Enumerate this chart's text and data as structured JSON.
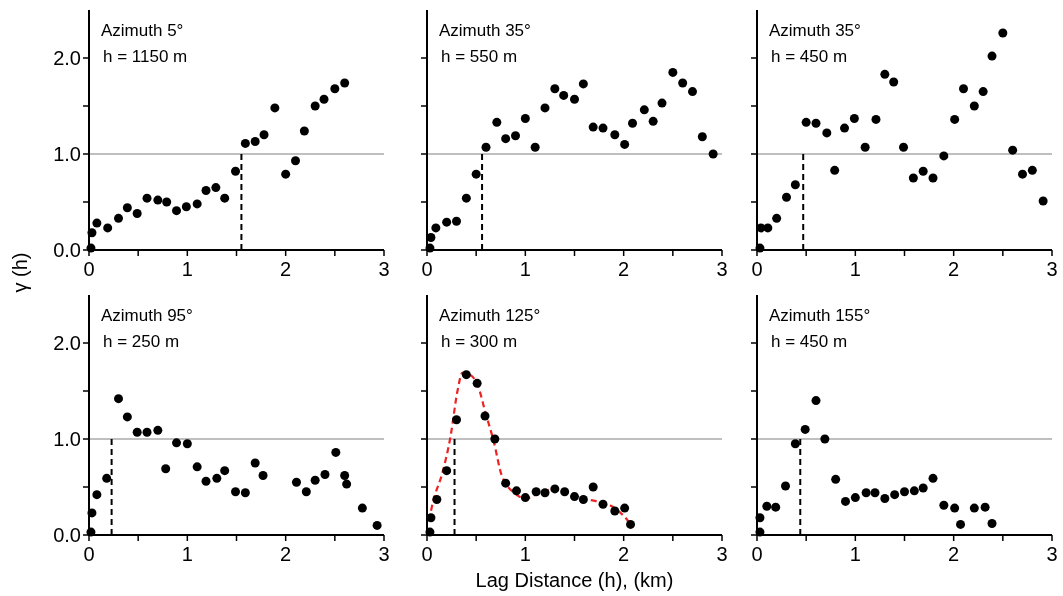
{
  "chart_data": [
    {
      "type": "scatter",
      "title": "Azimuth 5°",
      "subtitle": "h = 1150 m",
      "ylabel": "γ (h)",
      "xlim": [
        0,
        3
      ],
      "ylim": [
        0,
        2.5
      ],
      "xticks": [
        0,
        {
          "value": 0.5,
          "label": null
        },
        1,
        {
          "value": 1.5,
          "label": null
        },
        2,
        {
          "value": 2.5,
          "label": null
        },
        3
      ],
      "yticks": [
        {
          "value": 0,
          "label": "0.0"
        },
        {
          "value": 0.5,
          "label": null
        },
        {
          "value": 1,
          "label": "1.0"
        },
        {
          "value": 1.5,
          "label": null
        },
        {
          "value": 2,
          "label": "2.0"
        }
      ],
      "marker": "circle",
      "grid": false,
      "ref_lines": [
        {
          "axis": "y",
          "value": 1,
          "color": "#808080"
        },
        {
          "axis": "x",
          "value": 1.55,
          "color": "#000000",
          "line_style": "dashed"
        }
      ],
      "series": [
        {
          "color": "#000000",
          "x": [
            0.02,
            0.03,
            0.08,
            0.19,
            0.3,
            0.39,
            0.49,
            0.59,
            0.7,
            0.79,
            0.89,
            0.99,
            1.1,
            1.19,
            1.29,
            1.38,
            1.49,
            1.59,
            1.69,
            1.78,
            1.89,
            2.0,
            2.1,
            2.19,
            2.3,
            2.39,
            2.5,
            2.6
          ],
          "values": [
            0.02,
            0.18,
            0.28,
            0.23,
            0.33,
            0.44,
            0.38,
            0.54,
            0.52,
            0.5,
            0.41,
            0.45,
            0.48,
            0.62,
            0.65,
            0.54,
            0.82,
            1.11,
            1.13,
            1.2,
            1.48,
            0.79,
            0.93,
            1.24,
            1.5,
            1.57,
            1.68,
            1.74
          ]
        }
      ]
    },
    {
      "type": "scatter",
      "title": "Azimuth 35°",
      "subtitle": "h = 550 m",
      "xlim": [
        0,
        3
      ],
      "ylim": [
        0,
        2.5
      ],
      "xticks": [
        0,
        {
          "value": 0.5,
          "label": null
        },
        1,
        {
          "value": 1.5,
          "label": null
        },
        2,
        {
          "value": 2.5,
          "label": null
        },
        3
      ],
      "yticks": [
        {
          "value": 0,
          "label": null
        },
        {
          "value": 0.5,
          "label": null
        },
        {
          "value": 1,
          "label": null
        },
        {
          "value": 1.5,
          "label": null
        },
        {
          "value": 2,
          "label": null
        }
      ],
      "tick_labels": "x",
      "marker": "circle",
      "grid": false,
      "ref_lines": [
        {
          "axis": "y",
          "value": 1,
          "color": "#808080"
        },
        {
          "axis": "x",
          "value": 0.56,
          "color": "#000000",
          "line_style": "dashed"
        }
      ],
      "series": [
        {
          "color": "#000000",
          "x": [
            0.03,
            0.04,
            0.09,
            0.2,
            0.3,
            0.4,
            0.5,
            0.6,
            0.71,
            0.8,
            0.9,
            1.0,
            1.1,
            1.2,
            1.3,
            1.39,
            1.5,
            1.59,
            1.69,
            1.79,
            1.91,
            2.01,
            2.09,
            2.21,
            2.3,
            2.39,
            2.5,
            2.6,
            2.7,
            2.8,
            2.91
          ],
          "values": [
            0.02,
            0.13,
            0.23,
            0.29,
            0.3,
            0.54,
            0.79,
            1.07,
            1.33,
            1.16,
            1.19,
            1.37,
            1.07,
            1.48,
            1.68,
            1.61,
            1.57,
            1.73,
            1.28,
            1.27,
            1.2,
            1.1,
            1.32,
            1.46,
            1.34,
            1.53,
            1.85,
            1.74,
            1.65,
            1.18,
            1.0
          ]
        }
      ]
    },
    {
      "type": "scatter",
      "title": "Azimuth 35°",
      "subtitle": "h = 450 m",
      "xlim": [
        0,
        3
      ],
      "ylim": [
        0,
        2.5
      ],
      "xticks": [
        0,
        {
          "value": 0.5,
          "label": null
        },
        1,
        {
          "value": 1.5,
          "label": null
        },
        2,
        {
          "value": 2.5,
          "label": null
        },
        3
      ],
      "yticks": [
        {
          "value": 0,
          "label": null
        },
        {
          "value": 0.5,
          "label": null
        },
        {
          "value": 1,
          "label": null
        },
        {
          "value": 1.5,
          "label": null
        },
        {
          "value": 2,
          "label": null
        }
      ],
      "tick_labels": "x",
      "marker": "circle",
      "grid": false,
      "ref_lines": [
        {
          "axis": "y",
          "value": 1,
          "color": "#808080"
        },
        {
          "axis": "x",
          "value": 0.47,
          "color": "#000000",
          "line_style": "dashed"
        }
      ],
      "series": [
        {
          "color": "#000000",
          "x": [
            0.03,
            0.04,
            0.11,
            0.2,
            0.3,
            0.39,
            0.5,
            0.6,
            0.71,
            0.79,
            0.89,
            0.99,
            1.1,
            1.21,
            1.3,
            1.39,
            1.49,
            1.59,
            1.69,
            1.79,
            1.9,
            2.01,
            2.1,
            2.21,
            2.3,
            2.39,
            2.5,
            2.6,
            2.7,
            2.8,
            2.91
          ],
          "values": [
            0.02,
            0.23,
            0.23,
            0.33,
            0.55,
            0.68,
            1.33,
            1.32,
            1.22,
            0.83,
            1.27,
            1.37,
            1.07,
            1.36,
            1.83,
            1.75,
            1.07,
            0.75,
            0.82,
            0.75,
            0.98,
            1.36,
            1.68,
            1.5,
            1.65,
            2.02,
            2.26,
            1.04,
            0.79,
            0.83,
            0.51
          ]
        }
      ]
    },
    {
      "type": "scatter",
      "title": "Azimuth 95°",
      "subtitle": "h = 250 m",
      "xlim": [
        0,
        3
      ],
      "ylim": [
        0,
        2.5
      ],
      "xticks": [
        0,
        {
          "value": 0.5,
          "label": null
        },
        1,
        {
          "value": 1.5,
          "label": null
        },
        2,
        {
          "value": 2.5,
          "label": null
        },
        3
      ],
      "yticks": [
        {
          "value": 0,
          "label": "0.0"
        },
        {
          "value": 0.5,
          "label": null
        },
        {
          "value": 1,
          "label": "1.0"
        },
        {
          "value": 1.5,
          "label": null
        },
        {
          "value": 2,
          "label": "2.0"
        }
      ],
      "marker": "circle",
      "grid": false,
      "ref_lines": [
        {
          "axis": "y",
          "value": 1,
          "color": "#808080"
        },
        {
          "axis": "x",
          "value": 0.23,
          "color": "#000000",
          "line_style": "dashed"
        }
      ],
      "series": [
        {
          "color": "#000000",
          "x": [
            0.02,
            0.03,
            0.08,
            0.18,
            0.3,
            0.39,
            0.49,
            0.59,
            0.7,
            0.78,
            0.89,
            1.0,
            1.1,
            1.19,
            1.3,
            1.38,
            1.49,
            1.59,
            1.69,
            1.77,
            2.11,
            2.21,
            2.3,
            2.4,
            2.51,
            2.6,
            2.62,
            2.78,
            2.93
          ],
          "values": [
            0.03,
            0.23,
            0.42,
            0.59,
            1.42,
            1.23,
            1.07,
            1.07,
            1.09,
            0.69,
            0.96,
            0.95,
            0.71,
            0.56,
            0.59,
            0.67,
            0.45,
            0.44,
            0.75,
            0.62,
            0.55,
            0.45,
            0.57,
            0.63,
            0.86,
            0.62,
            0.53,
            0.28,
            0.1
          ]
        }
      ]
    },
    {
      "type": "scatter",
      "title": "Azimuth 125°",
      "subtitle": "h = 300 m",
      "xlabel": "Lag Distance (h), (km)",
      "xlim": [
        0,
        3
      ],
      "ylim": [
        0,
        2.5
      ],
      "xticks": [
        0,
        {
          "value": 0.5,
          "label": null
        },
        1,
        {
          "value": 1.5,
          "label": null
        },
        2,
        {
          "value": 2.5,
          "label": null
        },
        3
      ],
      "yticks": [
        {
          "value": 0,
          "label": null
        },
        {
          "value": 0.5,
          "label": null
        },
        {
          "value": 1,
          "label": null
        },
        {
          "value": 1.5,
          "label": null
        },
        {
          "value": 2,
          "label": null
        }
      ],
      "tick_labels": "x",
      "marker": "circle",
      "grid": false,
      "ref_lines": [
        {
          "axis": "y",
          "value": 1,
          "color": "#808080"
        },
        {
          "axis": "x",
          "value": 0.28,
          "color": "#000000",
          "line_style": "dashed"
        }
      ],
      "series": [
        {
          "type": "line",
          "color": "#ee2222",
          "line_style": "dashed",
          "marker": "none",
          "x": [
            0.02,
            0.06,
            0.16,
            0.24,
            0.31,
            0.36,
            0.45,
            0.52,
            0.59,
            0.68,
            0.76,
            0.9,
            1.0,
            1.13,
            1.3,
            1.45,
            1.6,
            1.86,
            2.0,
            2.06
          ],
          "values": [
            0.15,
            0.34,
            0.66,
            1.03,
            1.5,
            1.69,
            1.66,
            1.55,
            1.29,
            0.97,
            0.62,
            0.43,
            0.38,
            0.43,
            0.48,
            0.44,
            0.38,
            0.31,
            0.2,
            0.13
          ]
        },
        {
          "color": "#000000",
          "x": [
            0.03,
            0.04,
            0.1,
            0.2,
            0.3,
            0.4,
            0.51,
            0.59,
            0.69,
            0.8,
            0.91,
            1.0,
            1.11,
            1.2,
            1.3,
            1.4,
            1.5,
            1.59,
            1.69,
            1.79,
            1.91,
            2.01,
            2.07
          ],
          "values": [
            0.03,
            0.18,
            0.37,
            0.67,
            1.2,
            1.67,
            1.58,
            1.24,
            1.0,
            0.54,
            0.46,
            0.39,
            0.45,
            0.44,
            0.48,
            0.45,
            0.4,
            0.37,
            0.5,
            0.32,
            0.25,
            0.28,
            0.11
          ]
        }
      ]
    },
    {
      "type": "scatter",
      "title": "Azimuth 155°",
      "subtitle": "h = 450 m",
      "xlim": [
        0,
        3
      ],
      "ylim": [
        0,
        2.5
      ],
      "xticks": [
        0,
        {
          "value": 0.5,
          "label": null
        },
        1,
        {
          "value": 1.5,
          "label": null
        },
        2,
        {
          "value": 2.5,
          "label": null
        },
        3
      ],
      "yticks": [
        {
          "value": 0,
          "label": null
        },
        {
          "value": 0.5,
          "label": null
        },
        {
          "value": 1,
          "label": null
        },
        {
          "value": 1.5,
          "label": null
        },
        {
          "value": 2,
          "label": null
        }
      ],
      "tick_labels": "x",
      "marker": "circle",
      "grid": false,
      "ref_lines": [
        {
          "axis": "y",
          "value": 1,
          "color": "#808080"
        },
        {
          "axis": "x",
          "value": 0.44,
          "color": "#000000",
          "line_style": "dashed"
        }
      ],
      "series": [
        {
          "color": "#000000",
          "x": [
            0.03,
            0.03,
            0.1,
            0.19,
            0.29,
            0.39,
            0.49,
            0.6,
            0.69,
            0.8,
            0.9,
            1.0,
            1.11,
            1.2,
            1.3,
            1.4,
            1.5,
            1.6,
            1.69,
            1.79,
            1.9,
            2.01,
            2.07,
            2.21,
            2.32,
            2.39
          ],
          "values": [
            0.03,
            0.18,
            0.3,
            0.29,
            0.51,
            0.95,
            1.1,
            1.4,
            1.0,
            0.58,
            0.35,
            0.39,
            0.44,
            0.44,
            0.38,
            0.42,
            0.45,
            0.46,
            0.49,
            0.59,
            0.31,
            0.28,
            0.11,
            0.28,
            0.29,
            0.12
          ]
        }
      ]
    }
  ]
}
